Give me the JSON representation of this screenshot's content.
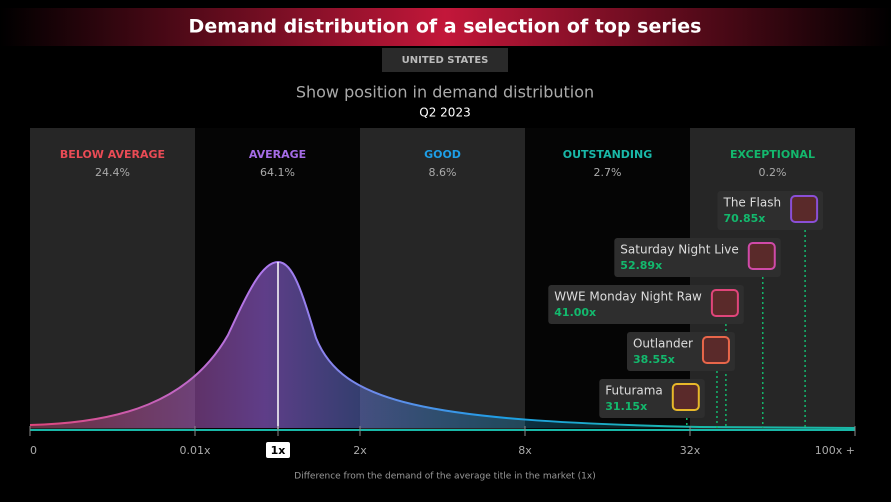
{
  "chart_data": {
    "type": "distribution",
    "title": "Demand distribution of a selection of top series",
    "region": "UNITED STATES",
    "subtitle": "Show position in demand distribution",
    "period": "Q2 2023",
    "x_label": "Difference from the demand of the average title in the market (1x)",
    "xticks": [
      0,
      {
        "value": 0.01,
        "label": "0.01x"
      },
      {
        "value": 1,
        "label": "1x"
      },
      {
        "value": 2,
        "label": "2x"
      },
      {
        "value": 8,
        "label": "8x"
      },
      {
        "value": 32,
        "label": "32x"
      },
      {
        "value": 100,
        "label": "100x +"
      }
    ],
    "xlim": [
      0,
      100
    ],
    "bands": {
      "categories": [
        "BELOW AVERAGE",
        "AVERAGE",
        "GOOD",
        "OUTSTANDING",
        "EXCEPTIONAL"
      ],
      "values": [
        24.4,
        64.1,
        8.6,
        2.7,
        0.2
      ],
      "value_labels": [
        "24.4%",
        "64.1%",
        "8.6%",
        "2.7%",
        "0.2%"
      ],
      "colors": [
        "#ea4b55",
        "#a56ce6",
        "#1e9ee6",
        "#19b8a8",
        "#13b86d"
      ]
    },
    "shows": {
      "categories": [
        "The Flash",
        "Saturday Night Live",
        "WWE Monday Night Raw",
        "Outlander",
        "Futurama"
      ],
      "values": [
        70.85,
        52.89,
        41.0,
        38.55,
        31.15
      ],
      "value_labels": [
        "70.85x",
        "52.89x",
        "41.00x",
        "38.55x",
        "31.15x"
      ],
      "colors": [
        "#8a4fd6",
        "#d04aa8",
        "#e0457a",
        "#e8664a",
        "#e8b82a"
      ]
    }
  }
}
